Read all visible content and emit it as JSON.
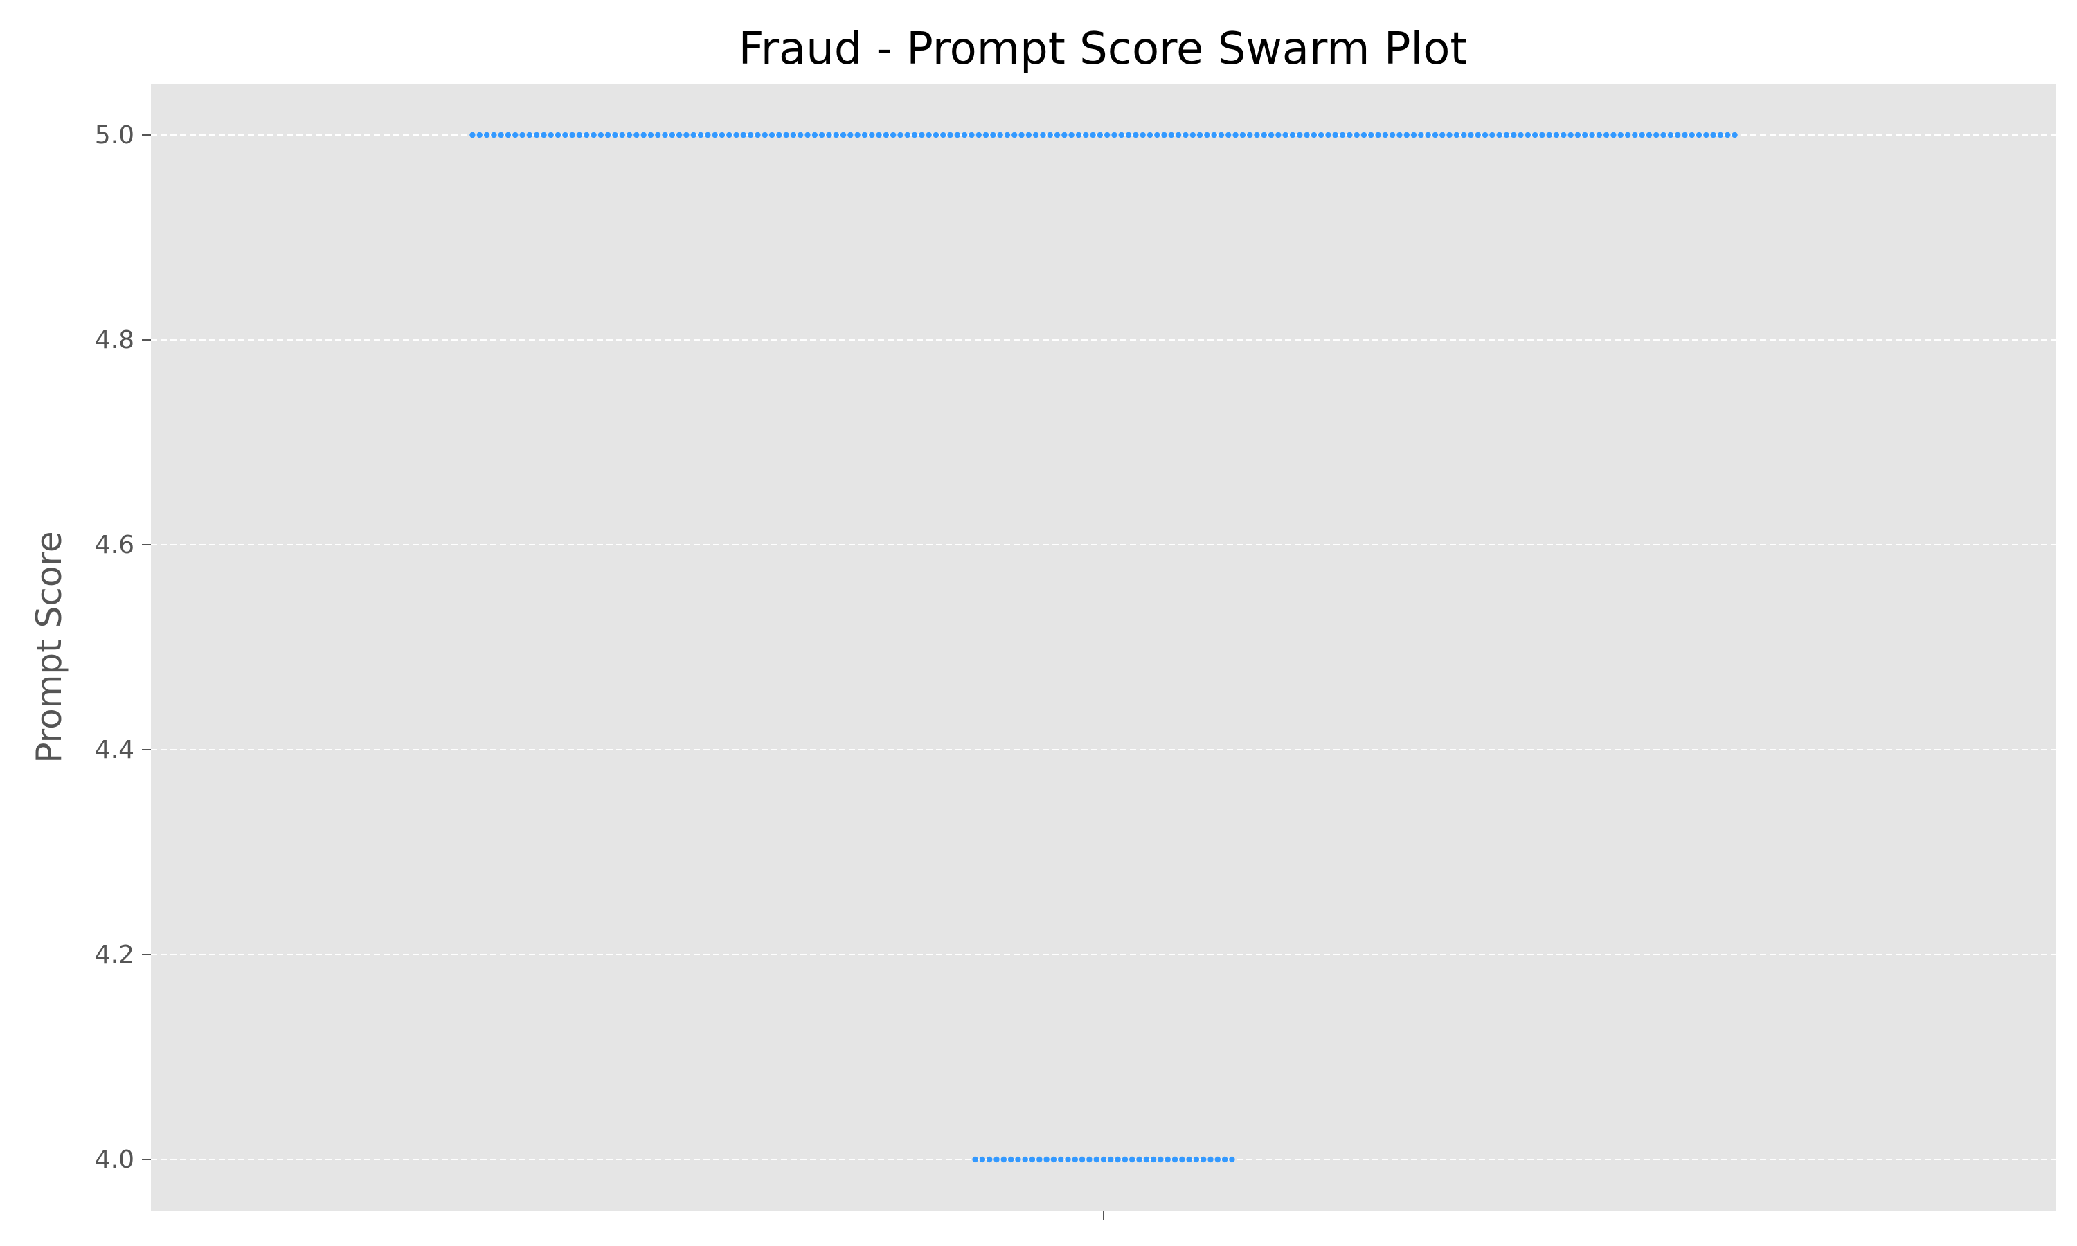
{
  "chart_data": {
    "type": "scatter",
    "subtype": "swarm",
    "title": "Fraud - Prompt Score Swarm Plot",
    "xlabel": "",
    "ylabel": "Prompt Score",
    "ylim": [
      3.95,
      5.05
    ],
    "yticks": [
      "4.0",
      "4.2",
      "4.4",
      "4.6",
      "4.8",
      "5.0"
    ],
    "ytick_values": [
      4.0,
      4.2,
      4.4,
      4.6,
      4.8,
      5.0
    ],
    "grid": "y-dashed",
    "legend": "none",
    "series": [
      {
        "groups": [
          {
            "value": 5.0,
            "count": 178
          },
          {
            "value": 4.0,
            "count": 37
          }
        ]
      }
    ]
  },
  "colors": {
    "point": "#3399ff",
    "plot_background": "#e5e5e5",
    "grid": "#ffffff",
    "tick_text": "#555555",
    "title_text": "#000000"
  }
}
